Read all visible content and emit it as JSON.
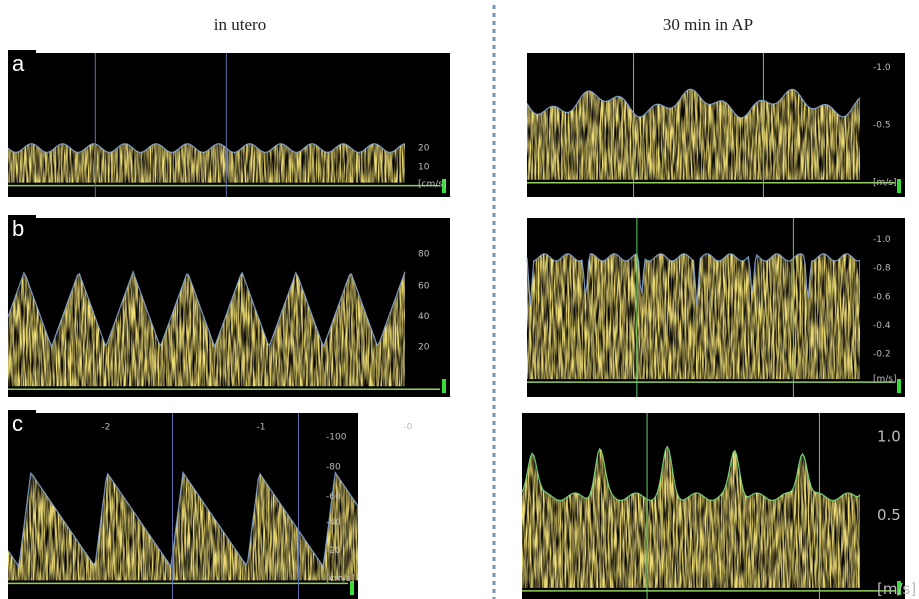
{
  "header": {
    "left": "in utero",
    "right": "30 min in AP"
  },
  "panels": [
    {
      "label": "a",
      "left": {
        "ticks": [
          "20",
          "10",
          "[cm/s]"
        ]
      },
      "right": {
        "ticks": [
          "-1.0",
          "-0.5",
          "[m/s]"
        ]
      }
    },
    {
      "label": "b",
      "left": {
        "ticks": [
          "80",
          "60",
          "40",
          "20"
        ]
      },
      "right": {
        "ticks": [
          "-1.0",
          "-0.8",
          "-0.6",
          "-0.4",
          "-0.2",
          "[m/s]"
        ]
      }
    },
    {
      "label": "c",
      "left": {
        "ticks": [
          "-100",
          "-80",
          "-60",
          "-40",
          "-20",
          "[cm/s]"
        ],
        "top_ticks": [
          "-2",
          "-1",
          "-0"
        ]
      },
      "right": {
        "ticks": [
          "1.0",
          "0.5",
          "[m/s]"
        ]
      }
    }
  ]
}
